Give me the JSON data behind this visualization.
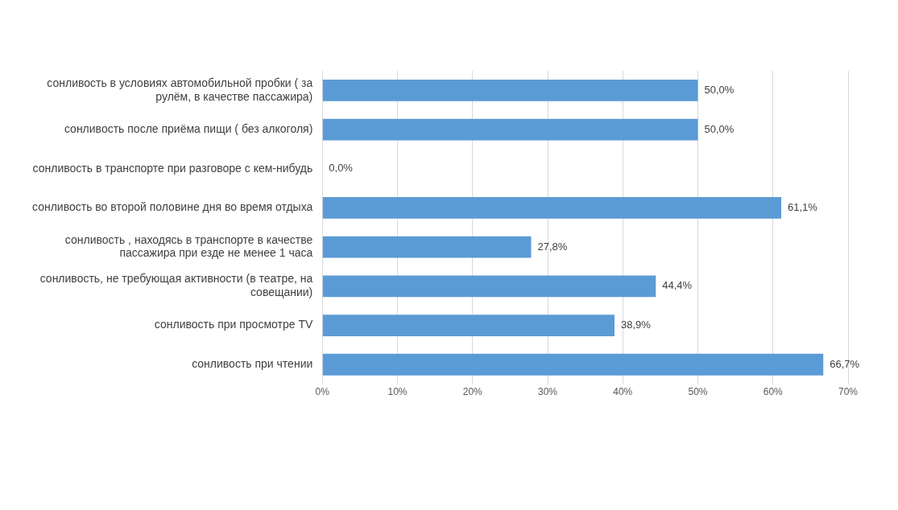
{
  "chart_data": {
    "type": "bar",
    "orientation": "horizontal",
    "categories": [
      "сонливость в условиях автомобильной пробки ( за рулём, в качестве пассажира)",
      "сонливость после приёма пищи ( без алкоголя)",
      "сонливость в транспорте при разговоре с кем-нибудь",
      "сонливость во второй половине дня во время отдыха",
      "сонливость , находясь в транспорте в качестве пассажира при езде не менее 1 часа",
      "сонливость, не требующая активности (в театре, на совещании)",
      "сонливость при просмотре TV",
      "сонливость при чтении"
    ],
    "values": [
      50.0,
      50.0,
      0.0,
      61.1,
      27.8,
      44.4,
      38.9,
      66.7
    ],
    "value_labels": [
      "50,0%",
      "50,0%",
      "0,0%",
      "61,1%",
      "27,8%",
      "44,4%",
      "38,9%",
      "66,7%"
    ],
    "color": "#5b9bd5",
    "xlim": [
      0,
      70
    ],
    "xticks": [
      {
        "value": 0,
        "label": "0%"
      },
      {
        "value": 10,
        "label": "10%"
      },
      {
        "value": 20,
        "label": "20%"
      },
      {
        "value": 30,
        "label": "30%"
      },
      {
        "value": 40,
        "label": "40%"
      },
      {
        "value": 50,
        "label": "50%"
      },
      {
        "value": 60,
        "label": "60%"
      },
      {
        "value": 70,
        "label": "70%"
      }
    ],
    "grid": "x",
    "legend": false
  }
}
